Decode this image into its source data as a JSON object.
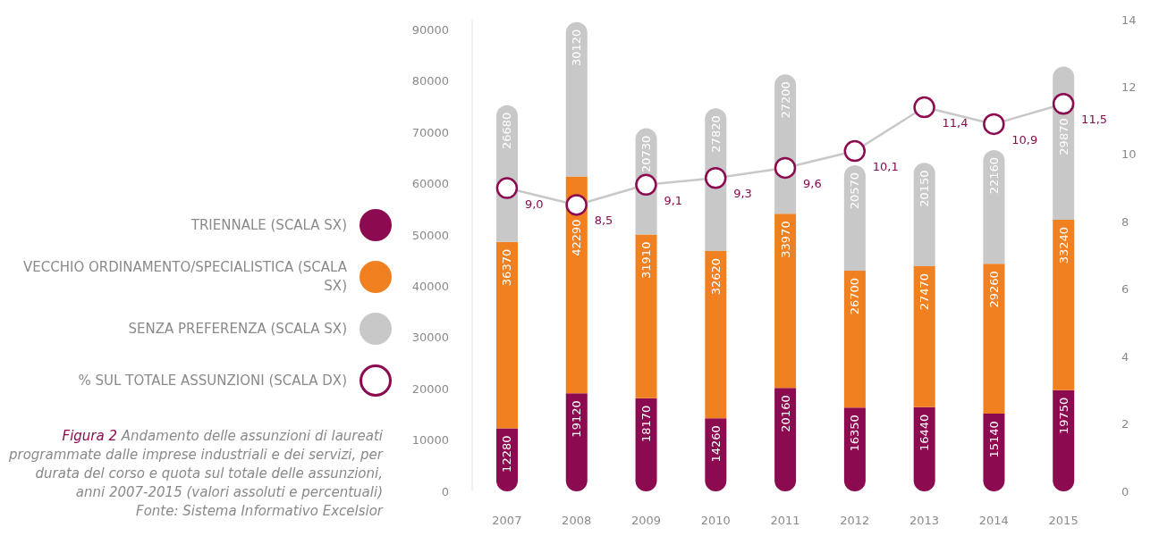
{
  "chart_data": {
    "type": "bar",
    "title": "Figura 2",
    "subtitle": "Andamento delle assunzioni di laureati programmate dalle imprese industriali e dei servizi, per durata del corso e quota sul totale delle assunzioni, anni 2007-2015 (valori assoluti e percentuali)",
    "annotations": [
      "Fonte: Sistema Informativo Excelsior"
    ],
    "categories": [
      "2007",
      "2008",
      "2009",
      "2010",
      "2011",
      "2012",
      "2013",
      "2014",
      "2015"
    ],
    "series": [
      {
        "name": "TRIENNALE (SCALA SX)",
        "color": "#8b0a50",
        "values": [
          12280,
          19120,
          18170,
          14260,
          20160,
          16350,
          16440,
          15140,
          19750
        ]
      },
      {
        "name": "VECCHIO ORDINAMENTO/SPECIALISTICA (SCALA SX)",
        "color": "#f08020",
        "values": [
          36370,
          42290,
          31910,
          32620,
          33970,
          26700,
          27470,
          29260,
          33240
        ]
      },
      {
        "name": "SENZA PREFERENZA (SCALA SX)",
        "color": "#c8c8c8",
        "values": [
          26680,
          30120,
          20730,
          27820,
          27200,
          20570,
          20150,
          22160,
          29870
        ]
      },
      {
        "name": "% SUL TOTALE ASSUNZIONI (SCALA DX)",
        "type": "line",
        "axis": "y2",
        "color": "#8b0a50",
        "values": [
          9.0,
          8.5,
          9.1,
          9.3,
          9.6,
          10.1,
          11.4,
          10.9,
          11.5
        ],
        "value_labels": [
          "9,0",
          "8,5",
          "9,1",
          "9,3",
          "9,6",
          "10,1",
          "11,4",
          "10,9",
          "11,5"
        ]
      }
    ],
    "stacked": true,
    "data_labels": true,
    "marker": "circle",
    "legend": "left",
    "ylim": [
      0,
      92000
    ],
    "yticks": [
      0,
      10000,
      20000,
      30000,
      40000,
      50000,
      60000,
      70000,
      80000,
      90000
    ],
    "y2lim": [
      0,
      14
    ],
    "y2ticks": [
      0,
      2,
      4,
      6,
      8,
      10,
      12,
      14
    ]
  }
}
